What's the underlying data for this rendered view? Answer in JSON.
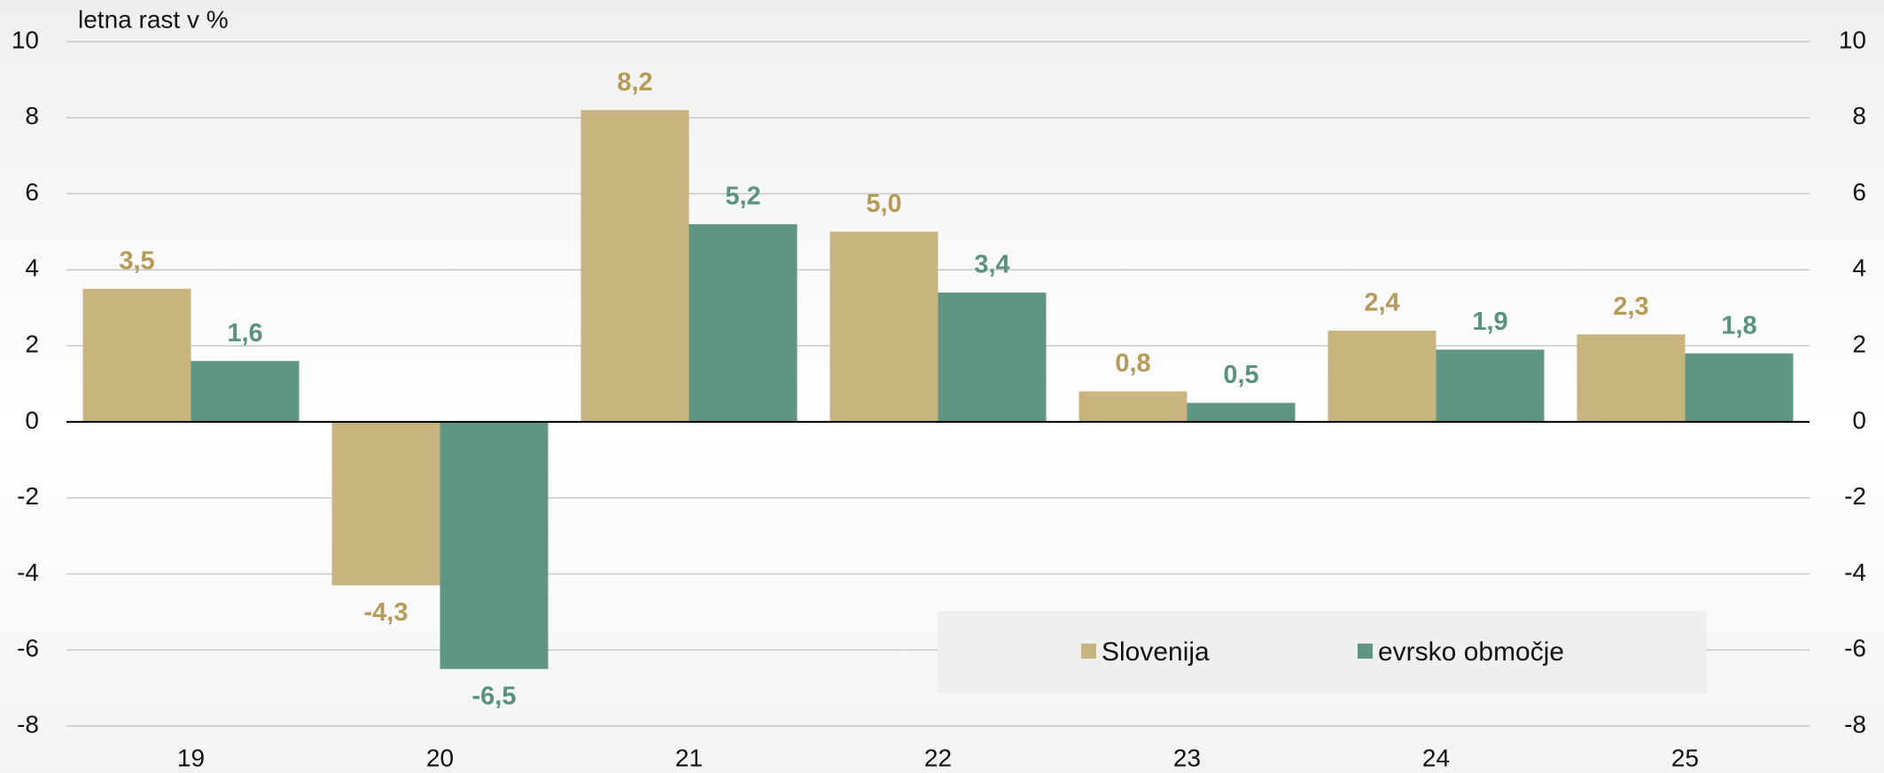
{
  "chart_data": {
    "type": "bar",
    "y_axis_label": "letna rast v %",
    "categories": [
      "19",
      "20",
      "21",
      "22",
      "23",
      "24",
      "25"
    ],
    "series": [
      {
        "name": "Slovenija",
        "color": "#c8b47f",
        "label_color": "#b69a57",
        "values": [
          3.5,
          -4.3,
          8.2,
          5.0,
          0.8,
          2.4,
          2.3
        ],
        "value_labels": [
          "3,5",
          "-4,3",
          "8,2",
          "5,0",
          "0,8",
          "2,4",
          "2,3"
        ]
      },
      {
        "name": "evrsko območje",
        "color": "#5f9683",
        "label_color": "#5a9282",
        "values": [
          1.6,
          -6.5,
          5.2,
          3.4,
          0.5,
          1.9,
          1.8
        ],
        "value_labels": [
          "1,6",
          "-6,5",
          "5,2",
          "3,4",
          "0,5",
          "1,9",
          "1,8"
        ]
      }
    ],
    "ylim": [
      -8,
      10
    ],
    "yticks": [
      -8,
      -6,
      -4,
      -2,
      0,
      2,
      4,
      6,
      8,
      10
    ],
    "y2lim": [
      -8,
      10
    ],
    "y2ticks": [
      -8,
      -6,
      -4,
      -2,
      0,
      2,
      4,
      6,
      8,
      10
    ],
    "grid": true
  }
}
